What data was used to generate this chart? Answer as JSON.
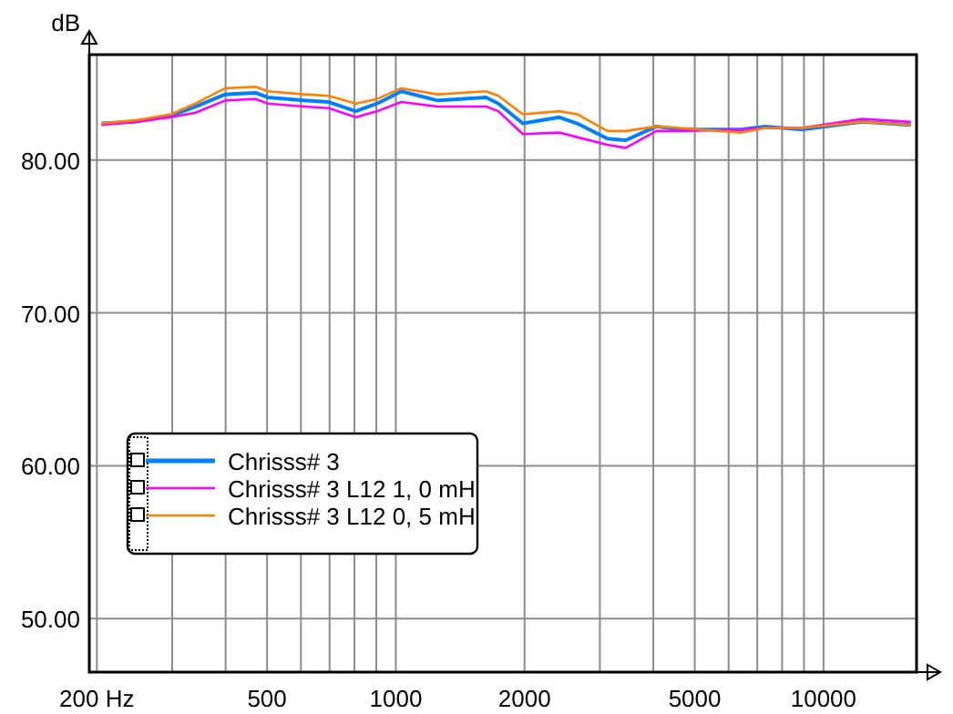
{
  "chart_data": {
    "type": "line",
    "ylabel": "dB",
    "log": "x",
    "x": [
      205,
      245,
      298,
      340,
      399,
      470,
      502,
      611,
      697,
      806,
      904,
      1030,
      1253,
      1626,
      1737,
      1981,
      2411,
      2655,
      3126,
      3446,
      4064,
      4624,
      6412,
      7311,
      8888,
      12320,
      16000
    ],
    "series": [
      {
        "name": "Chrisss# 3",
        "color": "#0080ff",
        "values": [
          82.4,
          82.5,
          82.9,
          83.5,
          84.3,
          84.4,
          84.1,
          83.9,
          83.8,
          83.2,
          83.7,
          84.5,
          83.9,
          84.1,
          83.7,
          82.4,
          82.8,
          82.4,
          81.4,
          81.3,
          82.2,
          82.0,
          82.0,
          82.2,
          82.0,
          82.5,
          82.3
        ]
      },
      {
        "name": "Chrisss# 3 L12 1, 0 mH",
        "color": "#ff00ff",
        "values": [
          82.3,
          82.5,
          82.8,
          83.1,
          83.9,
          84.0,
          83.7,
          83.5,
          83.4,
          82.8,
          83.2,
          83.8,
          83.5,
          83.5,
          83.2,
          81.7,
          81.8,
          81.5,
          81.0,
          80.8,
          81.9,
          81.9,
          82.0,
          82.1,
          82.1,
          82.7,
          82.5
        ]
      },
      {
        "name": "Chrisss# 3 L12 0, 5 mH",
        "color": "#ff8000",
        "values": [
          82.4,
          82.6,
          83.0,
          83.7,
          84.7,
          84.8,
          84.5,
          84.3,
          84.2,
          83.7,
          84.0,
          84.7,
          84.3,
          84.5,
          84.2,
          83.0,
          83.2,
          83.0,
          81.9,
          81.9,
          82.2,
          82.1,
          81.8,
          82.1,
          82.1,
          82.5,
          82.3
        ]
      }
    ],
    "xlim": [
      192,
      16500
    ],
    "ylim": [
      46.5,
      86.9
    ],
    "xticks": [
      {
        "value": 200,
        "label": "200 Hz"
      },
      {
        "value": 300,
        "label": null
      },
      {
        "value": 400,
        "label": null
      },
      500,
      {
        "value": 600,
        "label": null
      },
      {
        "value": 700,
        "label": null
      },
      {
        "value": 800,
        "label": null
      },
      {
        "value": 900,
        "label": null
      },
      1000,
      2000,
      {
        "value": 3000,
        "label": null
      },
      {
        "value": 4000,
        "label": null
      },
      5000,
      {
        "value": 6000,
        "label": null
      },
      {
        "value": 7000,
        "label": null
      },
      {
        "value": 8000,
        "label": null
      },
      {
        "value": 9000,
        "label": null
      },
      10000
    ],
    "yticks": [
      {
        "value": 50,
        "label": "50.00"
      },
      {
        "value": 60,
        "label": "60.00"
      },
      {
        "value": 70,
        "label": "70.00"
      },
      {
        "value": 80,
        "label": "80.00"
      }
    ],
    "grid": true,
    "legend": "bottom left",
    "marker": "none",
    "line_style": "solid"
  }
}
